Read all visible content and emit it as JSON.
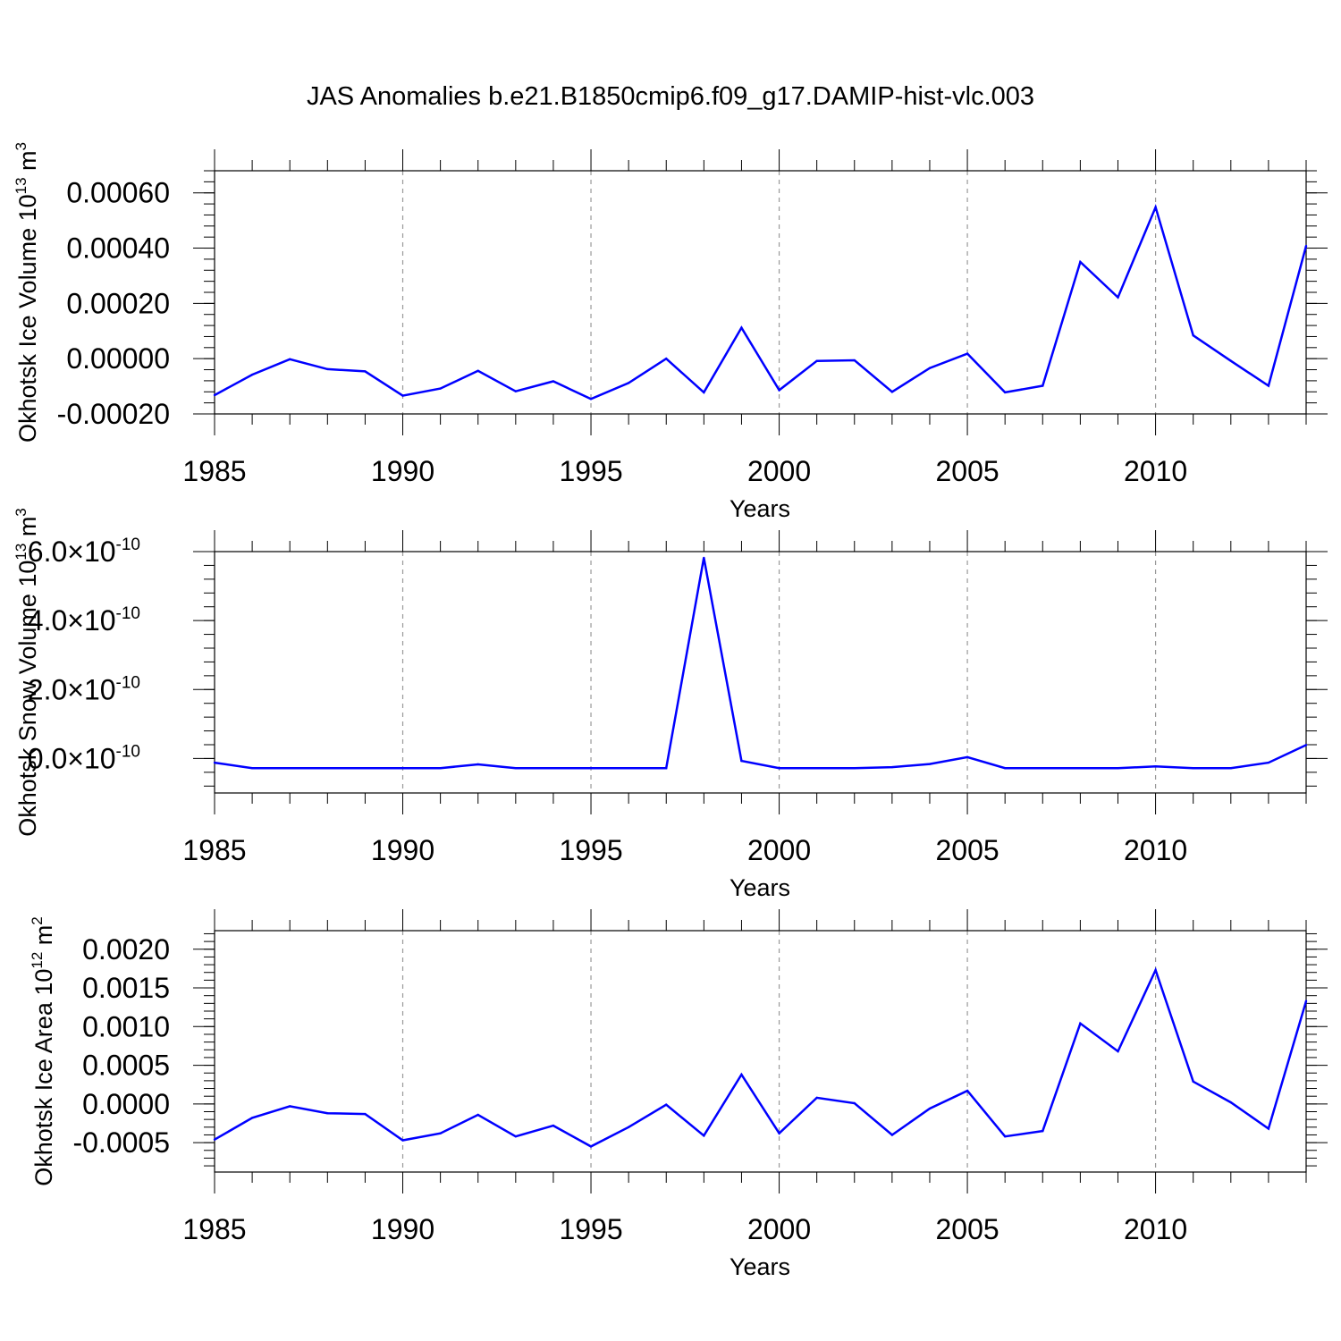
{
  "title": "JAS Anomalies b.e21.B1850cmip6.f09_g17.DAMIP-hist-vlc.003",
  "line_color": "#0000ff",
  "grid_color": "#999999",
  "chart_data": [
    {
      "type": "line",
      "ylabel_main": "Okhotsk Ice Volume 10",
      "ylabel_sup": "13",
      "ylabel_unit": " m",
      "ylabel_unit_sup": "3",
      "xlabel": "Years",
      "xlim": [
        1985,
        2014
      ],
      "ylim": [
        -0.0002,
        0.00068
      ],
      "xticks": [
        1985,
        1990,
        1995,
        2000,
        2005,
        2010
      ],
      "xtick_labels": [
        "1985",
        "1990",
        "1995",
        "2000",
        "2005",
        "2010"
      ],
      "yticks": [
        -0.0002,
        0.0,
        0.0002,
        0.0004,
        0.0006
      ],
      "ytick_labels": [
        "-0.00020",
        "0.00000",
        "0.00020",
        "0.00040",
        "0.00060"
      ],
      "x": [
        1985,
        1986,
        1987,
        1988,
        1989,
        1990,
        1991,
        1992,
        1993,
        1994,
        1995,
        1996,
        1997,
        1998,
        1999,
        2000,
        2001,
        2002,
        2003,
        2004,
        2005,
        2006,
        2007,
        2008,
        2009,
        2010,
        2011,
        2012,
        2013,
        2014
      ],
      "values": [
        -0.000132,
        -5.8e-05,
        -2e-06,
        -3.8e-05,
        -4.6e-05,
        -0.000134,
        -0.000108,
        -4.4e-05,
        -0.000118,
        -8.2e-05,
        -0.000146,
        -8.8e-05,
        0.0,
        -0.000122,
        0.000112,
        -0.000114,
        -8e-06,
        -6e-06,
        -0.00012,
        -3.4e-05,
        1.8e-05,
        -0.000122,
        -9.8e-05,
        0.00035,
        0.000222,
        0.000548,
        8.4e-05,
        -8e-06,
        -9.8e-05,
        0.000408
      ]
    },
    {
      "type": "line",
      "ylabel_main": "Okhotsk Snow Volume 10",
      "ylabel_sup": "13",
      "ylabel_unit": " m",
      "ylabel_unit_sup": "3",
      "xlabel": "Years",
      "xlim": [
        1985,
        2014
      ],
      "ylim": [
        -1e-10,
        6e-10
      ],
      "xticks": [
        1985,
        1990,
        1995,
        2000,
        2005,
        2010
      ],
      "xtick_labels": [
        "1985",
        "1990",
        "1995",
        "2000",
        "2005",
        "2010"
      ],
      "yticks": [
        0.0,
        2e-10,
        4e-10,
        6e-10
      ],
      "ytick_mantissas": [
        "0.0",
        "2.0",
        "4.0",
        "6.0"
      ],
      "ytick_times": "×10",
      "ytick_exponent": "-10",
      "x": [
        1985,
        1986,
        1987,
        1988,
        1989,
        1990,
        1991,
        1992,
        1993,
        1994,
        1995,
        1996,
        1997,
        1998,
        1999,
        2000,
        2001,
        2002,
        2003,
        2004,
        2005,
        2006,
        2007,
        2008,
        2009,
        2010,
        2011,
        2012,
        2013,
        2014
      ],
      "values": [
        -1.2e-11,
        -2.8e-11,
        -2.8e-11,
        -2.8e-11,
        -2.8e-11,
        -2.8e-11,
        -2.8e-11,
        -1.7e-11,
        -2.8e-11,
        -2.8e-11,
        -2.8e-11,
        -2.8e-11,
        -2.8e-11,
        5.82e-10,
        -7e-12,
        -2.8e-11,
        -2.8e-11,
        -2.8e-11,
        -2.5e-11,
        -1.6e-11,
        4e-12,
        -2.8e-11,
        -2.8e-11,
        -2.8e-11,
        -2.8e-11,
        -2.3e-11,
        -2.8e-11,
        -2.8e-11,
        -1.2e-11,
        3.9e-11
      ]
    },
    {
      "type": "line",
      "ylabel_main": "Okhotsk Ice Area 10",
      "ylabel_sup": "12",
      "ylabel_unit": " m",
      "ylabel_unit_sup": "2",
      "xlabel": "Years",
      "xlim": [
        1985,
        2014
      ],
      "ylim": [
        -0.00088,
        0.00224
      ],
      "xticks": [
        1985,
        1990,
        1995,
        2000,
        2005,
        2010
      ],
      "xtick_labels": [
        "1985",
        "1990",
        "1995",
        "2000",
        "2005",
        "2010"
      ],
      "yticks": [
        -0.0005,
        0.0,
        0.0005,
        0.001,
        0.0015,
        0.002
      ],
      "ytick_labels": [
        "-0.0005",
        "0.0000",
        "0.0005",
        "0.0010",
        "0.0015",
        "0.0020"
      ],
      "x": [
        1985,
        1986,
        1987,
        1988,
        1989,
        1990,
        1991,
        1992,
        1993,
        1994,
        1995,
        1996,
        1997,
        1998,
        1999,
        2000,
        2001,
        2002,
        2003,
        2004,
        2005,
        2006,
        2007,
        2008,
        2009,
        2010,
        2011,
        2012,
        2013,
        2014
      ],
      "values": [
        -0.00046,
        -0.00018,
        -3e-05,
        -0.00012,
        -0.00013,
        -0.00047,
        -0.00038,
        -0.00014,
        -0.00042,
        -0.00028,
        -0.00055,
        -0.0003,
        -1e-05,
        -0.00041,
        0.00038,
        -0.00038,
        8e-05,
        1e-05,
        -0.0004,
        -6e-05,
        0.00017,
        -0.00042,
        -0.00035,
        0.00104,
        0.00068,
        0.00173,
        0.00029,
        2e-05,
        -0.00032,
        0.00133
      ]
    }
  ]
}
